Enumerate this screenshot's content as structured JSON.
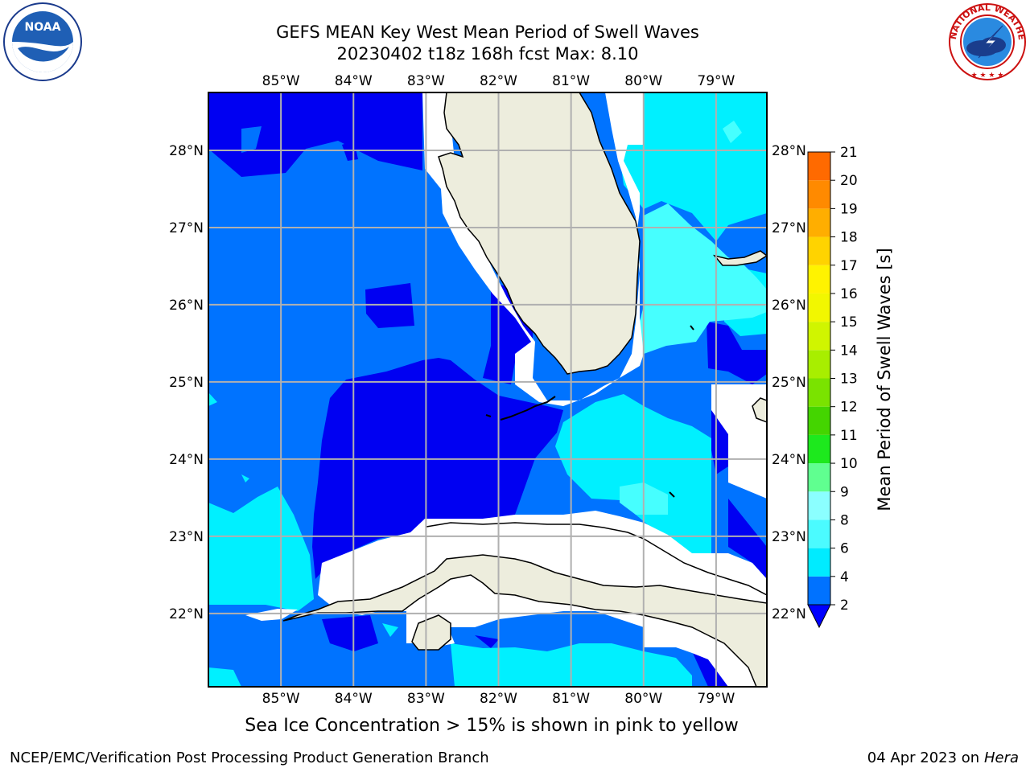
{
  "title": {
    "line1": "GEFS MEAN Key West Mean Period of Swell Waves",
    "line2": "20230402 t18z 168h fcst   Max: 8.10"
  },
  "logos": {
    "left": "noaa-logo",
    "right": "national-weather-service-logo",
    "right_text": "NATIONAL WEATHER SERVICE"
  },
  "map": {
    "lon_ticks": [
      "85°W",
      "84°W",
      "83°W",
      "82°W",
      "81°W",
      "80°W",
      "79°W"
    ],
    "lat_ticks": [
      "28°N",
      "27°N",
      "26°N",
      "25°N",
      "24°N",
      "23°N",
      "22°N"
    ],
    "lon_range": [
      -86.0,
      -78.3
    ],
    "lat_range": [
      21.05,
      28.75
    ],
    "grid": true
  },
  "colorbar": {
    "label": "Mean Period of Swell Waves [s]",
    "ticks": [
      "21",
      "20",
      "19",
      "18",
      "17",
      "16",
      "15",
      "14",
      "13",
      "12",
      "11",
      "10",
      "9",
      "8",
      "6",
      "4",
      "2"
    ],
    "colors": [
      "#0072ff",
      "#00ebff",
      "#4bfbff",
      "#8bffff",
      "#60ff90",
      "#1de91d",
      "#44d500",
      "#7ae300",
      "#a8ee00",
      "#d0f500",
      "#f2f700",
      "#fff300",
      "#ffd300",
      "#ffae00",
      "#ff8a00",
      "#ff6a00",
      "#ff4a00",
      "#ff2200",
      "#ff0000"
    ],
    "underflow_color": "#0000ff"
  },
  "field_colors": {
    "lt2": "#0000f2",
    "c2_4": "#0073ff",
    "c4_6": "#00f0ff",
    "c6_8": "#46ffff",
    "land": "#ededdd",
    "missing": "#ffffff"
  },
  "footer": {
    "ice_note": "Sea Ice Concentration > 15% is shown in pink to yellow",
    "credit": "NCEP/EMC/Verification Post Processing Product Generation Branch",
    "date": "04 Apr 2023 on",
    "machine": "Hera"
  }
}
